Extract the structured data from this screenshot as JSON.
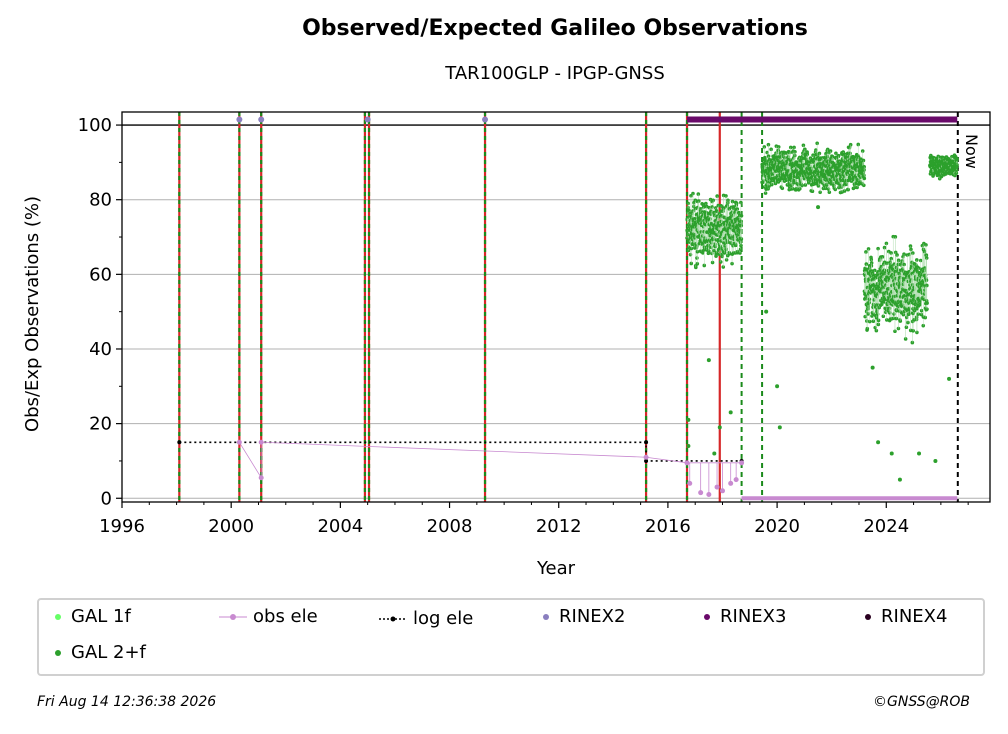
{
  "chart_data": {
    "type": "scatter",
    "title": "Observed/Expected Galileo Observations",
    "subtitle": "TAR100GLP - IPGP-GNSS",
    "xlabel": "Year",
    "ylabel": "Obs/Exp Observations (%)",
    "xlim": [
      1996,
      2027.8
    ],
    "ylim": [
      -1,
      103.5
    ],
    "xticks": [
      1996,
      2000,
      2004,
      2008,
      2012,
      2016,
      2020,
      2024
    ],
    "yticks": [
      0,
      20,
      40,
      60,
      80,
      100
    ],
    "grid_y": true,
    "now_label": "Now",
    "now_x": 2026.62,
    "reference_line_y": 100,
    "colors": {
      "gal_1f": "#66ff66",
      "gal_2f": "#2ca02c",
      "obs_ele": "#c88ad0",
      "log_ele": "#000000",
      "rinex2": "#8a7fbf",
      "rinex3": "#6a0a6a",
      "rinex4": "#2a0020",
      "red_line": "#d62728",
      "green_dash": "#1a8a1a"
    },
    "vertical_lines_red_green": [
      1998.1,
      2000.3,
      2001.1,
      2004.9,
      2005.05,
      2009.3,
      2015.2,
      2016.7
    ],
    "vertical_lines_red": [
      2017.9
    ],
    "vertical_lines_green_dash": [
      2018.7,
      2019.45
    ],
    "rinex2_points": [
      [
        2000.3,
        101.5
      ],
      [
        2001.1,
        101.5
      ],
      [
        2005.0,
        101.5
      ],
      [
        2009.3,
        101.5
      ]
    ],
    "rinex3_bar": {
      "x_start": 2016.7,
      "x_end": 2026.6,
      "y": 101.5
    },
    "rinex_low_bar": {
      "x_start": 2018.7,
      "x_end": 2026.6,
      "y": 0
    },
    "log_ele": [
      [
        1998.1,
        15
      ],
      [
        2015.2,
        15
      ],
      [
        2015.2,
        10
      ],
      [
        2018.7,
        10
      ]
    ],
    "obs_ele": [
      [
        2000.3,
        15
      ],
      [
        2001.1,
        5.5
      ],
      [
        2001.1,
        15
      ],
      [
        2015.2,
        11
      ],
      [
        2016.7,
        9.5
      ],
      [
        2018.7,
        9.5
      ]
    ],
    "obs_ele_low_points": [
      [
        2016.8,
        4
      ],
      [
        2017.2,
        1.5
      ],
      [
        2017.5,
        1
      ],
      [
        2017.8,
        3
      ],
      [
        2018.0,
        2
      ],
      [
        2018.3,
        4
      ],
      [
        2018.5,
        5
      ]
    ],
    "gal_2f_segments": [
      {
        "x_start": 2016.7,
        "x_end": 2018.7,
        "center": 72,
        "spread": 6
      },
      {
        "x_start": 2019.45,
        "x_end": 2023.2,
        "center": 88,
        "spread": 4
      },
      {
        "x_start": 2023.2,
        "x_end": 2025.5,
        "center": 56,
        "spread": 8
      },
      {
        "x_start": 2025.6,
        "x_end": 2026.6,
        "center": 89,
        "spread": 2
      }
    ],
    "gal_2f_outliers": [
      [
        2016.75,
        21
      ],
      [
        2016.75,
        14
      ],
      [
        2017.5,
        37
      ],
      [
        2017.7,
        12
      ],
      [
        2017.9,
        19
      ],
      [
        2018.3,
        23
      ],
      [
        2019.6,
        50
      ],
      [
        2020.1,
        19
      ],
      [
        2020.0,
        30
      ],
      [
        2021.5,
        78
      ],
      [
        2023.5,
        35
      ],
      [
        2023.7,
        15
      ],
      [
        2024.2,
        12
      ],
      [
        2024.5,
        5
      ],
      [
        2025.2,
        12
      ],
      [
        2025.8,
        10
      ],
      [
        2026.3,
        32
      ]
    ],
    "legend": {
      "gal_1f": "GAL 1f",
      "gal_2f": "GAL 2+f",
      "obs_ele": "obs ele",
      "log_ele": "log ele",
      "rinex2": "RINEX2",
      "rinex3": "RINEX3",
      "rinex4": "RINEX4"
    }
  },
  "footer": {
    "date": "Fri Aug 14 12:36:38 2026",
    "credit": "©GNSS@ROB"
  }
}
